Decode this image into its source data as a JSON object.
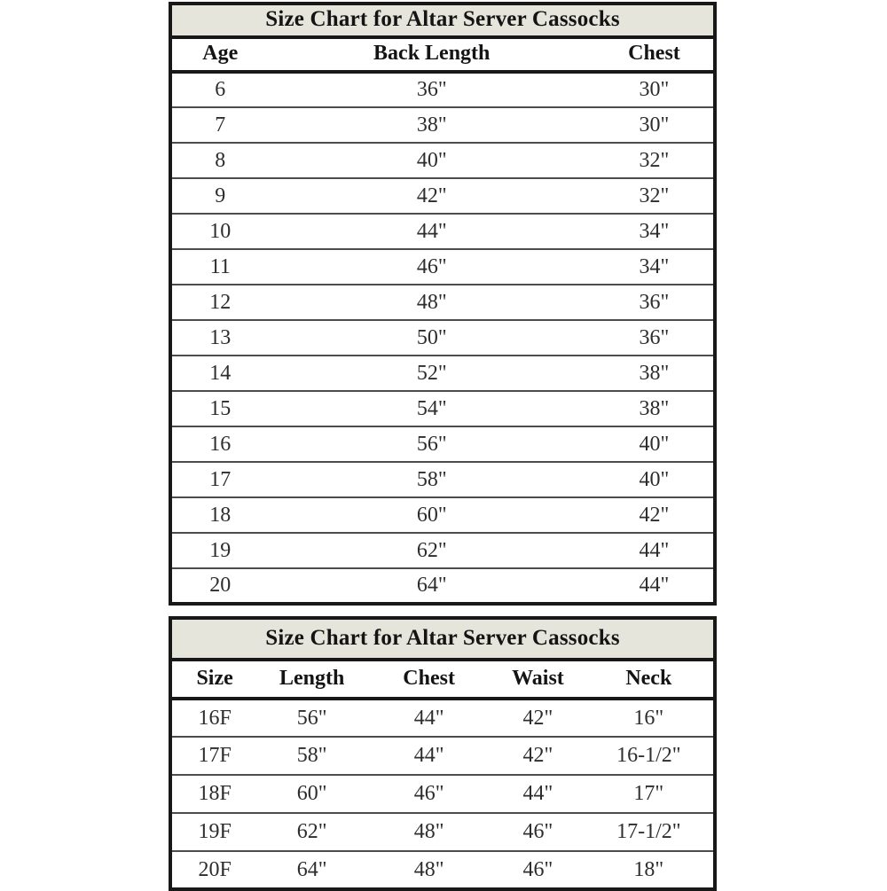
{
  "colors": {
    "title_bg": "#e6e5dc",
    "border_dark": "#181818",
    "row_line": "#4d4d4d",
    "text_dark": "#141414",
    "text_data": "#2d2d2d",
    "page_bg": "#ffffff"
  },
  "tables": [
    {
      "title": "Size Chart for Altar Server Cassocks",
      "columns": [
        "Age",
        "Back Length",
        "Chest"
      ],
      "col_widths": [
        "18%",
        "60%",
        "22%"
      ],
      "rows": [
        [
          "6",
          "36\"",
          "30\""
        ],
        [
          "7",
          "38\"",
          "30\""
        ],
        [
          "8",
          "40\"",
          "32\""
        ],
        [
          "9",
          "42\"",
          "32\""
        ],
        [
          "10",
          "44\"",
          "34\""
        ],
        [
          "11",
          "46\"",
          "34\""
        ],
        [
          "12",
          "48\"",
          "36\""
        ],
        [
          "13",
          "50\"",
          "36\""
        ],
        [
          "14",
          "52\"",
          "38\""
        ],
        [
          "15",
          "54\"",
          "38\""
        ],
        [
          "16",
          "56\"",
          "40\""
        ],
        [
          "17",
          "58\"",
          "40\""
        ],
        [
          "18",
          "60\"",
          "42\""
        ],
        [
          "19",
          "62\"",
          "44\""
        ],
        [
          "20",
          "64\"",
          "44\""
        ]
      ]
    },
    {
      "title": "Size Chart for Altar Server Cassocks",
      "columns": [
        "Size",
        "Length",
        "Chest",
        "Waist",
        "Neck"
      ],
      "col_widths": [
        "16%",
        "20%",
        "23%",
        "17%",
        "24%"
      ],
      "rows": [
        [
          "16F",
          "56\"",
          "44\"",
          "42\"",
          "16\""
        ],
        [
          "17F",
          "58\"",
          "44\"",
          "42\"",
          "16-1/2\""
        ],
        [
          "18F",
          "60\"",
          "46\"",
          "44\"",
          "17\""
        ],
        [
          "19F",
          "62\"",
          "48\"",
          "46\"",
          "17-1/2\""
        ],
        [
          "20F",
          "64\"",
          "48\"",
          "46\"",
          "18\""
        ]
      ]
    }
  ]
}
